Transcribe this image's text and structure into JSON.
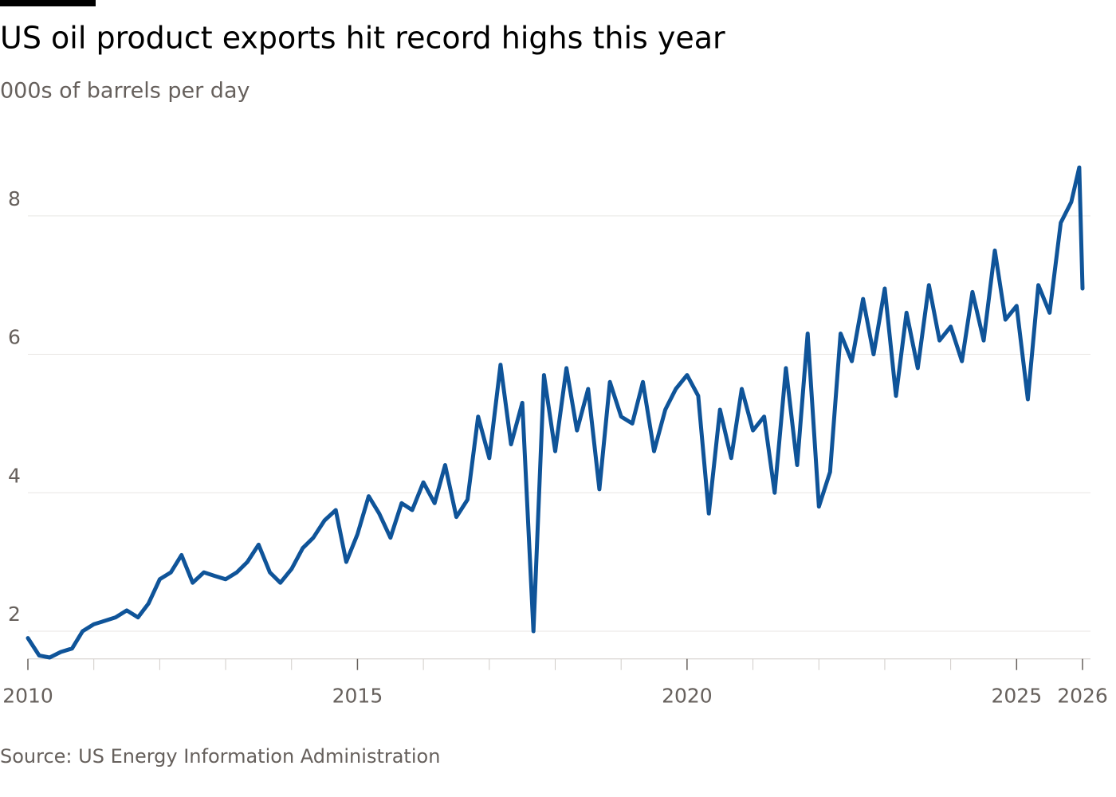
{
  "chart_data": {
    "type": "line",
    "title": "US oil product exports hit record highs this year",
    "subtitle": "000s of barrels per day",
    "source": "Source: US Energy Information Administration",
    "x": [
      2010,
      2010.17,
      2010.33,
      2010.5,
      2010.67,
      2010.83,
      2011,
      2011.17,
      2011.33,
      2011.5,
      2011.67,
      2011.83,
      2012,
      2012.17,
      2012.33,
      2012.5,
      2012.67,
      2012.83,
      2013,
      2013.17,
      2013.33,
      2013.5,
      2013.67,
      2013.83,
      2014,
      2014.17,
      2014.33,
      2014.5,
      2014.67,
      2014.83,
      2015,
      2015.17,
      2015.33,
      2015.5,
      2015.67,
      2015.83,
      2016,
      2016.17,
      2016.33,
      2016.5,
      2016.67,
      2016.83,
      2017,
      2017.17,
      2017.33,
      2017.5,
      2017.67,
      2017.83,
      2018,
      2018.17,
      2018.33,
      2018.5,
      2018.67,
      2018.83,
      2019,
      2019.17,
      2019.33,
      2019.5,
      2019.67,
      2019.83,
      2020,
      2020.17,
      2020.33,
      2020.5,
      2020.67,
      2020.83,
      2021,
      2021.17,
      2021.33,
      2021.5,
      2021.67,
      2021.83,
      2022,
      2022.17,
      2022.33,
      2022.5,
      2022.67,
      2022.83,
      2023,
      2023.17,
      2023.33,
      2023.5,
      2023.67,
      2023.83,
      2024,
      2024.17,
      2024.33,
      2024.5,
      2024.67,
      2024.83,
      2025,
      2025.17,
      2025.33,
      2025.5,
      2025.67,
      2025.83,
      2025.95,
      2026
    ],
    "series": [
      {
        "name": "US oil product exports",
        "color": "#0f5499",
        "values": [
          1.9,
          1.65,
          1.62,
          1.7,
          1.75,
          2.0,
          2.1,
          2.15,
          2.2,
          2.3,
          2.2,
          2.4,
          2.75,
          2.85,
          3.1,
          2.7,
          2.85,
          2.8,
          2.75,
          2.85,
          3.0,
          3.25,
          2.85,
          2.7,
          2.9,
          3.2,
          3.35,
          3.6,
          3.75,
          3.0,
          3.4,
          3.95,
          3.7,
          3.35,
          3.85,
          3.75,
          4.15,
          3.85,
          4.4,
          3.65,
          3.9,
          5.1,
          4.5,
          5.85,
          4.7,
          5.3,
          2.0,
          5.7,
          4.6,
          5.8,
          4.9,
          5.5,
          4.05,
          5.6,
          5.1,
          5.0,
          5.6,
          4.6,
          5.2,
          5.5,
          5.7,
          5.4,
          3.7,
          5.2,
          4.5,
          5.5,
          4.9,
          5.1,
          4.0,
          5.8,
          4.4,
          6.3,
          3.8,
          4.3,
          6.3,
          5.9,
          6.8,
          6.0,
          6.95,
          5.4,
          6.6,
          5.8,
          7.0,
          6.2,
          6.4,
          5.9,
          6.9,
          6.2,
          7.5,
          6.5,
          6.7,
          5.35,
          7.0,
          6.6,
          7.9,
          8.2,
          8.7,
          6.95
        ]
      }
    ],
    "xlim": [
      2010,
      2026
    ],
    "xticks": [
      2010,
      2015,
      2020,
      2025,
      2026
    ],
    "minor_xticks": [
      2011,
      2012,
      2013,
      2014,
      2016,
      2017,
      2018,
      2019,
      2021,
      2022,
      2023,
      2024
    ],
    "ylim": [
      1.6,
      9
    ],
    "yticks": [
      2,
      4,
      6,
      8
    ],
    "grid": true
  }
}
